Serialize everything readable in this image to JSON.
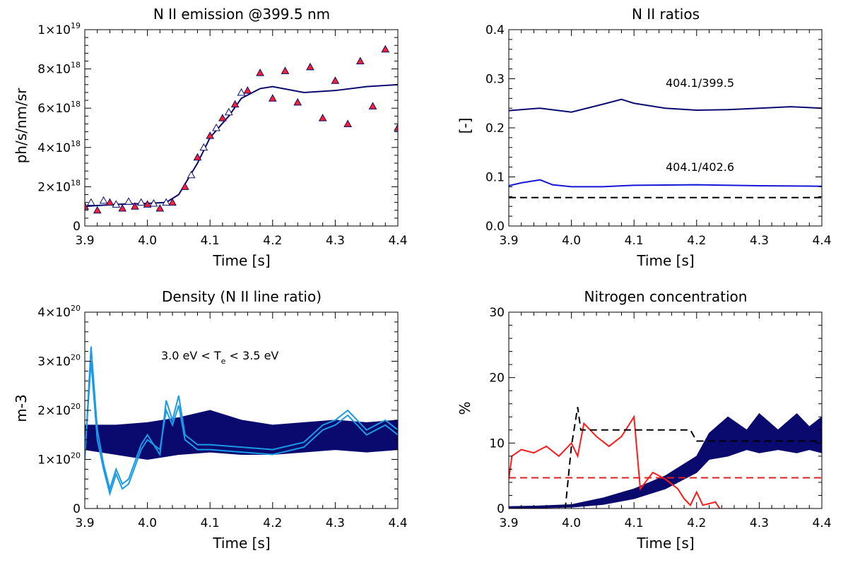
{
  "chart_data": [
    {
      "type": "scatter",
      "title": "N II emission @399.5 nm",
      "xlabel": "Time [s]",
      "ylabel": "ph/s/nm/sr",
      "xlim": [
        3.9,
        4.4
      ],
      "ylim": [
        0,
        1e+19
      ],
      "x_ticks": [
        "3.9",
        "4.0",
        "4.1",
        "4.2",
        "4.3",
        "4.4"
      ],
      "y_ticks": [
        {
          "base": "0",
          "exp": ""
        },
        {
          "base": "2×10",
          "exp": "18"
        },
        {
          "base": "4×10",
          "exp": "18"
        },
        {
          "base": "6×10",
          "exp": "18"
        },
        {
          "base": "8×10",
          "exp": "18"
        },
        {
          "base": "1×10",
          "exp": "19"
        }
      ],
      "series": [
        {
          "color": "#0a0a6e",
          "style": "line",
          "x": [
            3.9,
            3.95,
            4.0,
            4.03,
            4.05,
            4.08,
            4.1,
            4.13,
            4.15,
            4.18,
            4.2,
            4.25,
            4.3,
            4.35,
            4.4
          ],
          "y": [
            1e+18,
            1.1e+18,
            1.15e+18,
            1.2e+18,
            1.6e+18,
            3.2e+18,
            4.5e+18,
            5.6e+18,
            6.5e+18,
            7e+18,
            7.1e+18,
            6.8e+18,
            6.9e+18,
            7.1e+18,
            7.2e+18
          ]
        },
        {
          "color": "#ff1f2e",
          "style": "filled-triangle",
          "x": [
            3.9,
            3.92,
            3.94,
            3.96,
            3.98,
            4.0,
            4.02,
            4.04,
            4.06,
            4.08,
            4.1,
            4.12,
            4.14,
            4.16,
            4.18,
            4.2,
            4.22,
            4.24,
            4.26,
            4.28,
            4.3,
            4.32,
            4.34,
            4.36,
            4.38,
            4.4
          ],
          "y": [
            1e+18,
            8e+17,
            1.2e+18,
            9e+17,
            1e+18,
            1.1e+18,
            9e+17,
            1.2e+18,
            2e+18,
            3.5e+18,
            4.6e+18,
            5.5e+18,
            6.2e+18,
            6.9e+18,
            7.8e+18,
            6.5e+18,
            7.9e+18,
            6.3e+18,
            8.1e+18,
            5.5e+18,
            7.4e+18,
            5.2e+18,
            8.4e+18,
            6.1e+18,
            9e+18,
            5e+18
          ]
        },
        {
          "color": "#0a0a6e",
          "style": "open-triangle",
          "x": [
            3.91,
            3.93,
            3.95,
            3.97,
            3.99,
            4.01,
            4.03,
            4.07,
            4.09,
            4.11,
            4.13,
            4.15
          ],
          "y": [
            1.2e+18,
            1.3e+18,
            1.1e+18,
            1.25e+18,
            1.2e+18,
            1.15e+18,
            1.2e+18,
            2.6e+18,
            4e+18,
            5e+18,
            5.8e+18,
            6.8e+18
          ]
        }
      ]
    },
    {
      "type": "line",
      "title": "N II ratios",
      "xlabel": "Time [s]",
      "ylabel": "[-]",
      "xlim": [
        3.9,
        4.4
      ],
      "ylim": [
        0,
        0.4
      ],
      "x_ticks": [
        "3.9",
        "4.0",
        "4.1",
        "4.2",
        "4.3",
        "4.4"
      ],
      "y_ticks": [
        {
          "base": "0.0",
          "exp": ""
        },
        {
          "base": "0.1",
          "exp": ""
        },
        {
          "base": "0.2",
          "exp": ""
        },
        {
          "base": "0.3",
          "exp": ""
        },
        {
          "base": "0.4",
          "exp": ""
        }
      ],
      "annotations": [
        "404.1/399.5",
        "404.1/402.6"
      ],
      "series": [
        {
          "name": "404.1/399.5",
          "color": "#0a0a6e",
          "style": "line",
          "x": [
            3.9,
            3.95,
            4.0,
            4.05,
            4.08,
            4.1,
            4.15,
            4.2,
            4.25,
            4.3,
            4.35,
            4.4
          ],
          "y": [
            0.235,
            0.24,
            0.232,
            0.248,
            0.258,
            0.25,
            0.24,
            0.236,
            0.237,
            0.24,
            0.243,
            0.24
          ]
        },
        {
          "name": "404.1/402.6",
          "color": "#1515d8",
          "style": "line",
          "x": [
            3.9,
            3.92,
            3.95,
            3.97,
            4.0,
            4.05,
            4.1,
            4.2,
            4.3,
            4.4
          ],
          "y": [
            0.082,
            0.088,
            0.094,
            0.084,
            0.08,
            0.08,
            0.083,
            0.084,
            0.082,
            0.081
          ]
        },
        {
          "color": "#000000",
          "style": "dashed",
          "x": [
            3.9,
            4.4
          ],
          "y": [
            0.058,
            0.058
          ]
        }
      ]
    },
    {
      "type": "area",
      "title": "Density (N II line ratio)",
      "xlabel": "Time [s]",
      "ylabel": "m-3",
      "xlim": [
        3.9,
        4.4
      ],
      "ylim": [
        0,
        4e+20
      ],
      "x_ticks": [
        "3.9",
        "4.0",
        "4.1",
        "4.2",
        "4.3",
        "4.4"
      ],
      "y_ticks": [
        {
          "base": "0",
          "exp": ""
        },
        {
          "base": "1×10",
          "exp": "20"
        },
        {
          "base": "2×10",
          "exp": "20"
        },
        {
          "base": "3×10",
          "exp": "20"
        },
        {
          "base": "4×10",
          "exp": "20"
        }
      ],
      "annotation": {
        "prefix": "3.0 eV < T",
        "sub": "e",
        "suffix": " < 3.5 eV"
      },
      "band": {
        "color": "#0a0a6e",
        "x": [
          3.9,
          3.95,
          4.0,
          4.05,
          4.1,
          4.15,
          4.2,
          4.25,
          4.3,
          4.35,
          4.4
        ],
        "lower": [
          1.2e+20,
          1.1e+20,
          1e+20,
          1.1e+20,
          1.15e+20,
          1.1e+20,
          1.1e+20,
          1.15e+20,
          1.2e+20,
          1.15e+20,
          1.2e+20
        ],
        "upper": [
          1.7e+20,
          1.7e+20,
          1.75e+20,
          1.85e+20,
          2e+20,
          1.8e+20,
          1.7e+20,
          1.75e+20,
          1.8e+20,
          1.75e+20,
          1.8e+20
        ]
      },
      "series": [
        {
          "color": "#1a9ae6",
          "style": "line",
          "x": [
            3.9,
            3.91,
            3.92,
            3.93,
            3.94,
            3.95,
            3.96,
            3.97,
            3.99,
            4.0,
            4.02,
            4.03,
            4.04,
            4.05,
            4.06,
            4.08,
            4.1,
            4.15,
            4.2,
            4.25,
            4.28,
            4.3,
            4.32,
            4.35,
            4.38,
            4.4
          ],
          "y": [
            1e+20,
            3.3e+20,
            1.6e+20,
            9e+19,
            4e+19,
            8e+19,
            5e+19,
            6e+19,
            1.3e+20,
            1.5e+20,
            1.1e+20,
            2.2e+20,
            1.8e+20,
            2.3e+20,
            1.5e+20,
            1.3e+20,
            1.3e+20,
            1.25e+20,
            1.2e+20,
            1.35e+20,
            1.7e+20,
            1.8e+20,
            2e+20,
            1.6e+20,
            1.8e+20,
            1.6e+20
          ]
        },
        {
          "color": "#1a9ae6",
          "style": "line",
          "x": [
            3.9,
            3.91,
            3.92,
            3.93,
            3.94,
            3.95,
            3.96,
            3.97,
            3.99,
            4.0,
            4.02,
            4.03,
            4.04,
            4.05,
            4.06,
            4.08,
            4.1,
            4.15,
            4.2,
            4.25,
            4.28,
            4.3,
            4.32,
            4.35,
            4.38,
            4.4
          ],
          "y": [
            1.1e+20,
            3e+20,
            1.4e+20,
            8e+19,
            3e+19,
            7e+19,
            4e+19,
            5e+19,
            1.2e+20,
            1.4e+20,
            1.2e+20,
            2e+20,
            1.7e+20,
            2.1e+20,
            1.4e+20,
            1.2e+20,
            1.2e+20,
            1.15e+20,
            1.1e+20,
            1.25e+20,
            1.6e+20,
            1.7e+20,
            1.9e+20,
            1.5e+20,
            1.7e+20,
            1.5e+20
          ]
        }
      ]
    },
    {
      "type": "line",
      "title": "Nitrogen concentration",
      "xlabel": "Time [s]",
      "ylabel": "%",
      "xlim": [
        3.9,
        4.4
      ],
      "ylim": [
        0,
        30
      ],
      "x_ticks": [
        "3.9",
        "4.0",
        "4.1",
        "4.2",
        "4.3",
        "4.4"
      ],
      "y_ticks": [
        {
          "base": "0",
          "exp": ""
        },
        {
          "base": "10",
          "exp": ""
        },
        {
          "base": "20",
          "exp": ""
        },
        {
          "base": "30",
          "exp": ""
        }
      ],
      "band": {
        "color": "#0a0a6e",
        "x": [
          3.9,
          3.95,
          4.0,
          4.05,
          4.1,
          4.15,
          4.2,
          4.22,
          4.25,
          4.28,
          4.3,
          4.33,
          4.36,
          4.38,
          4.4
        ],
        "lower": [
          0.0,
          0.1,
          0.2,
          0.6,
          1.5,
          3.0,
          5.5,
          7.5,
          8.0,
          9.0,
          8.5,
          9.0,
          8.5,
          9.0,
          8.5
        ],
        "upper": [
          0.3,
          0.4,
          0.6,
          1.6,
          3.0,
          5.0,
          8.0,
          11.5,
          14.0,
          12.0,
          14.5,
          12.0,
          14.5,
          12.5,
          14.0
        ]
      },
      "series": [
        {
          "color": "#ff1a1a",
          "style": "line",
          "x": [
            3.9,
            3.905,
            3.92,
            3.94,
            3.96,
            3.98,
            4.0,
            4.01,
            4.02,
            4.04,
            4.06,
            4.08,
            4.1,
            4.11,
            4.13,
            4.15,
            4.17,
            4.18,
            4.19,
            4.2,
            4.21,
            4.23,
            4.24
          ],
          "y": [
            4.5,
            8.0,
            9.0,
            8.5,
            9.5,
            8.0,
            10.0,
            8.0,
            13.0,
            11.0,
            9.5,
            11.0,
            14.0,
            3.0,
            5.5,
            4.5,
            3.0,
            1.5,
            0.5,
            2.5,
            0.5,
            1.0,
            -0.5
          ]
        },
        {
          "color": "#e02020",
          "style": "dashed",
          "x": [
            3.9,
            4.4
          ],
          "y": [
            4.7,
            4.7
          ]
        },
        {
          "color": "#000000",
          "style": "dashed",
          "x": [
            3.9,
            3.99,
            4.0,
            4.01,
            4.015,
            4.02,
            4.1,
            4.19,
            4.2,
            4.4
          ],
          "y": [
            -0.2,
            -0.2,
            9.5,
            15.5,
            12.0,
            12.0,
            12.0,
            12.0,
            10.3,
            10.3
          ]
        }
      ]
    }
  ]
}
